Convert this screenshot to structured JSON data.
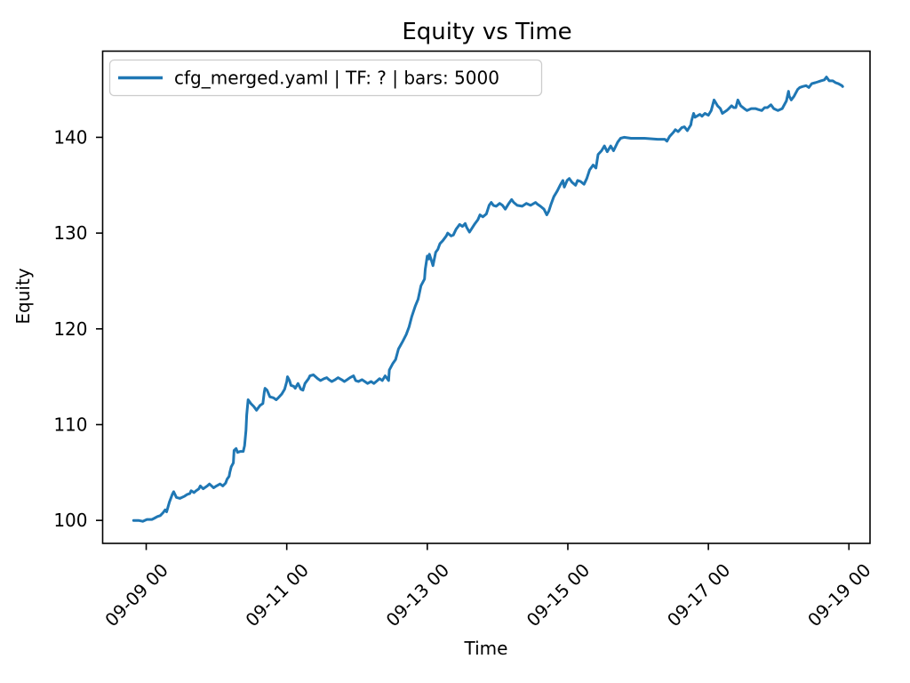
{
  "figure": {
    "background": "#ffffff"
  },
  "chart_data": {
    "type": "line",
    "title": "Equity vs Time",
    "xlabel": "Time",
    "ylabel": "Equity",
    "grid": false,
    "legend_position": "upper left",
    "legend_entries": [
      "cfg_merged.yaml | TF: ? | bars: 5000"
    ],
    "line_color": "#1f77b4",
    "axis_color": "#000000",
    "legend_edge_color": "#cccccc",
    "x_unit": "days since 09-09 00:00",
    "xlim": [
      -0.62,
      10.3
    ],
    "ylim": [
      97.6,
      149.0
    ],
    "y_ticks": [
      100,
      110,
      120,
      130,
      140
    ],
    "x_ticks": [
      {
        "day": 0,
        "label": "09-09 00"
      },
      {
        "day": 2,
        "label": "09-11 00"
      },
      {
        "day": 4,
        "label": "09-13 00"
      },
      {
        "day": 6,
        "label": "09-15 00"
      },
      {
        "day": 8,
        "label": "09-17 00"
      },
      {
        "day": 10,
        "label": "09-19 00"
      }
    ],
    "series": [
      {
        "name": "cfg_merged.yaml | TF: ? | bars: 5000",
        "color": "#1f77b4",
        "points": [
          [
            -0.18,
            100.0
          ],
          [
            -0.11,
            100.0
          ],
          [
            -0.05,
            99.9
          ],
          [
            0.01,
            100.1
          ],
          [
            0.08,
            100.1
          ],
          [
            0.11,
            100.2
          ],
          [
            0.16,
            100.4
          ],
          [
            0.2,
            100.5
          ],
          [
            0.24,
            100.8
          ],
          [
            0.27,
            101.1
          ],
          [
            0.29,
            100.9
          ],
          [
            0.33,
            101.9
          ],
          [
            0.37,
            102.7
          ],
          [
            0.39,
            103.0
          ],
          [
            0.43,
            102.4
          ],
          [
            0.48,
            102.3
          ],
          [
            0.54,
            102.5
          ],
          [
            0.58,
            102.7
          ],
          [
            0.62,
            102.8
          ],
          [
            0.64,
            103.1
          ],
          [
            0.68,
            102.9
          ],
          [
            0.71,
            103.1
          ],
          [
            0.75,
            103.3
          ],
          [
            0.77,
            103.6
          ],
          [
            0.81,
            103.3
          ],
          [
            0.87,
            103.6
          ],
          [
            0.9,
            103.8
          ],
          [
            0.96,
            103.4
          ],
          [
            1.0,
            103.6
          ],
          [
            1.05,
            103.8
          ],
          [
            1.09,
            103.6
          ],
          [
            1.13,
            103.9
          ],
          [
            1.15,
            104.3
          ],
          [
            1.18,
            104.6
          ],
          [
            1.19,
            105.0
          ],
          [
            1.21,
            105.6
          ],
          [
            1.24,
            106.0
          ],
          [
            1.25,
            107.3
          ],
          [
            1.28,
            107.5
          ],
          [
            1.3,
            107.1
          ],
          [
            1.34,
            107.2
          ],
          [
            1.38,
            107.2
          ],
          [
            1.4,
            107.8
          ],
          [
            1.42,
            109.4
          ],
          [
            1.43,
            111.0
          ],
          [
            1.45,
            112.6
          ],
          [
            1.49,
            112.2
          ],
          [
            1.53,
            111.9
          ],
          [
            1.57,
            111.5
          ],
          [
            1.62,
            112.0
          ],
          [
            1.66,
            112.2
          ],
          [
            1.68,
            113.4
          ],
          [
            1.69,
            113.8
          ],
          [
            1.72,
            113.6
          ],
          [
            1.76,
            112.9
          ],
          [
            1.81,
            112.8
          ],
          [
            1.85,
            112.6
          ],
          [
            1.88,
            112.8
          ],
          [
            1.93,
            113.2
          ],
          [
            1.97,
            113.7
          ],
          [
            2.0,
            114.5
          ],
          [
            2.01,
            115.0
          ],
          [
            2.04,
            114.6
          ],
          [
            2.06,
            114.1
          ],
          [
            2.1,
            114.0
          ],
          [
            2.12,
            113.8
          ],
          [
            2.16,
            114.3
          ],
          [
            2.2,
            113.7
          ],
          [
            2.23,
            113.6
          ],
          [
            2.26,
            114.3
          ],
          [
            2.31,
            114.8
          ],
          [
            2.33,
            115.1
          ],
          [
            2.38,
            115.2
          ],
          [
            2.44,
            114.8
          ],
          [
            2.48,
            114.6
          ],
          [
            2.53,
            114.8
          ],
          [
            2.57,
            114.9
          ],
          [
            2.6,
            114.7
          ],
          [
            2.64,
            114.5
          ],
          [
            2.69,
            114.7
          ],
          [
            2.73,
            114.9
          ],
          [
            2.78,
            114.7
          ],
          [
            2.82,
            114.5
          ],
          [
            2.86,
            114.7
          ],
          [
            2.9,
            114.9
          ],
          [
            2.95,
            115.1
          ],
          [
            2.98,
            114.6
          ],
          [
            3.02,
            114.5
          ],
          [
            3.07,
            114.7
          ],
          [
            3.11,
            114.5
          ],
          [
            3.15,
            114.3
          ],
          [
            3.2,
            114.5
          ],
          [
            3.24,
            114.3
          ],
          [
            3.29,
            114.6
          ],
          [
            3.32,
            114.8
          ],
          [
            3.36,
            114.6
          ],
          [
            3.4,
            115.1
          ],
          [
            3.43,
            114.8
          ],
          [
            3.45,
            114.6
          ],
          [
            3.46,
            115.7
          ],
          [
            3.51,
            116.4
          ],
          [
            3.55,
            116.8
          ],
          [
            3.59,
            117.9
          ],
          [
            3.62,
            118.3
          ],
          [
            3.65,
            118.7
          ],
          [
            3.7,
            119.4
          ],
          [
            3.74,
            120.2
          ],
          [
            3.78,
            121.3
          ],
          [
            3.83,
            122.4
          ],
          [
            3.87,
            123.1
          ],
          [
            3.91,
            124.5
          ],
          [
            3.96,
            125.2
          ],
          [
            3.97,
            126.2
          ],
          [
            4.0,
            127.6
          ],
          [
            4.02,
            127.3
          ],
          [
            4.03,
            127.8
          ],
          [
            4.06,
            127.1
          ],
          [
            4.08,
            126.6
          ],
          [
            4.12,
            128.0
          ],
          [
            4.15,
            128.3
          ],
          [
            4.18,
            128.9
          ],
          [
            4.22,
            129.2
          ],
          [
            4.27,
            129.7
          ],
          [
            4.29,
            130.0
          ],
          [
            4.34,
            129.7
          ],
          [
            4.37,
            129.8
          ],
          [
            4.41,
            130.4
          ],
          [
            4.46,
            130.9
          ],
          [
            4.5,
            130.7
          ],
          [
            4.54,
            131.0
          ],
          [
            4.56,
            130.6
          ],
          [
            4.6,
            130.1
          ],
          [
            4.67,
            130.9
          ],
          [
            4.72,
            131.4
          ],
          [
            4.75,
            131.9
          ],
          [
            4.79,
            131.7
          ],
          [
            4.84,
            132.0
          ],
          [
            4.88,
            132.9
          ],
          [
            4.91,
            133.2
          ],
          [
            4.94,
            132.9
          ],
          [
            4.98,
            132.8
          ],
          [
            5.03,
            133.1
          ],
          [
            5.07,
            132.9
          ],
          [
            5.11,
            132.5
          ],
          [
            5.16,
            133.1
          ],
          [
            5.2,
            133.5
          ],
          [
            5.23,
            133.2
          ],
          [
            5.28,
            132.9
          ],
          [
            5.35,
            132.8
          ],
          [
            5.41,
            133.1
          ],
          [
            5.47,
            132.9
          ],
          [
            5.54,
            133.2
          ],
          [
            5.57,
            133.0
          ],
          [
            5.61,
            132.8
          ],
          [
            5.66,
            132.5
          ],
          [
            5.7,
            131.9
          ],
          [
            5.73,
            132.3
          ],
          [
            5.76,
            133.0
          ],
          [
            5.8,
            133.8
          ],
          [
            5.85,
            134.4
          ],
          [
            5.89,
            135.0
          ],
          [
            5.93,
            135.5
          ],
          [
            5.95,
            134.8
          ],
          [
            5.99,
            135.5
          ],
          [
            6.02,
            135.7
          ],
          [
            6.06,
            135.3
          ],
          [
            6.11,
            135.0
          ],
          [
            6.14,
            135.5
          ],
          [
            6.18,
            135.4
          ],
          [
            6.23,
            135.1
          ],
          [
            6.27,
            135.7
          ],
          [
            6.31,
            136.6
          ],
          [
            6.36,
            137.1
          ],
          [
            6.4,
            136.8
          ],
          [
            6.43,
            138.2
          ],
          [
            6.48,
            138.6
          ],
          [
            6.52,
            139.1
          ],
          [
            6.56,
            138.5
          ],
          [
            6.61,
            139.1
          ],
          [
            6.65,
            138.6
          ],
          [
            6.71,
            139.5
          ],
          [
            6.75,
            139.9
          ],
          [
            6.8,
            140.0
          ],
          [
            6.9,
            139.9
          ],
          [
            7.09,
            139.9
          ],
          [
            7.28,
            139.8
          ],
          [
            7.38,
            139.8
          ],
          [
            7.41,
            139.6
          ],
          [
            7.45,
            140.1
          ],
          [
            7.5,
            140.5
          ],
          [
            7.53,
            140.8
          ],
          [
            7.57,
            140.6
          ],
          [
            7.62,
            141.0
          ],
          [
            7.66,
            141.1
          ],
          [
            7.7,
            140.7
          ],
          [
            7.75,
            141.3
          ],
          [
            7.76,
            141.7
          ],
          [
            7.79,
            142.5
          ],
          [
            7.81,
            142.1
          ],
          [
            7.88,
            142.4
          ],
          [
            7.91,
            142.2
          ],
          [
            7.95,
            142.5
          ],
          [
            8.0,
            142.3
          ],
          [
            8.04,
            142.8
          ],
          [
            8.08,
            143.9
          ],
          [
            8.13,
            143.3
          ],
          [
            8.17,
            143.0
          ],
          [
            8.2,
            142.5
          ],
          [
            8.26,
            142.8
          ],
          [
            8.29,
            143.0
          ],
          [
            8.33,
            143.3
          ],
          [
            8.36,
            143.1
          ],
          [
            8.39,
            143.1
          ],
          [
            8.42,
            143.9
          ],
          [
            8.46,
            143.3
          ],
          [
            8.51,
            143.0
          ],
          [
            8.55,
            142.8
          ],
          [
            8.61,
            143.0
          ],
          [
            8.67,
            143.0
          ],
          [
            8.71,
            142.9
          ],
          [
            8.76,
            142.8
          ],
          [
            8.8,
            143.1
          ],
          [
            8.84,
            143.1
          ],
          [
            8.89,
            143.4
          ],
          [
            8.93,
            143.0
          ],
          [
            8.99,
            142.8
          ],
          [
            9.05,
            143.0
          ],
          [
            9.11,
            143.8
          ],
          [
            9.14,
            144.8
          ],
          [
            9.15,
            144.3
          ],
          [
            9.18,
            143.9
          ],
          [
            9.22,
            144.3
          ],
          [
            9.27,
            145.0
          ],
          [
            9.3,
            145.2
          ],
          [
            9.34,
            145.3
          ],
          [
            9.39,
            145.4
          ],
          [
            9.43,
            145.2
          ],
          [
            9.47,
            145.6
          ],
          [
            9.52,
            145.7
          ],
          [
            9.56,
            145.8
          ],
          [
            9.6,
            145.9
          ],
          [
            9.65,
            146.0
          ],
          [
            9.68,
            146.3
          ],
          [
            9.72,
            145.9
          ],
          [
            9.77,
            145.9
          ],
          [
            9.81,
            145.7
          ],
          [
            9.85,
            145.6
          ],
          [
            9.9,
            145.4
          ],
          [
            9.91,
            145.3
          ]
        ]
      }
    ]
  }
}
